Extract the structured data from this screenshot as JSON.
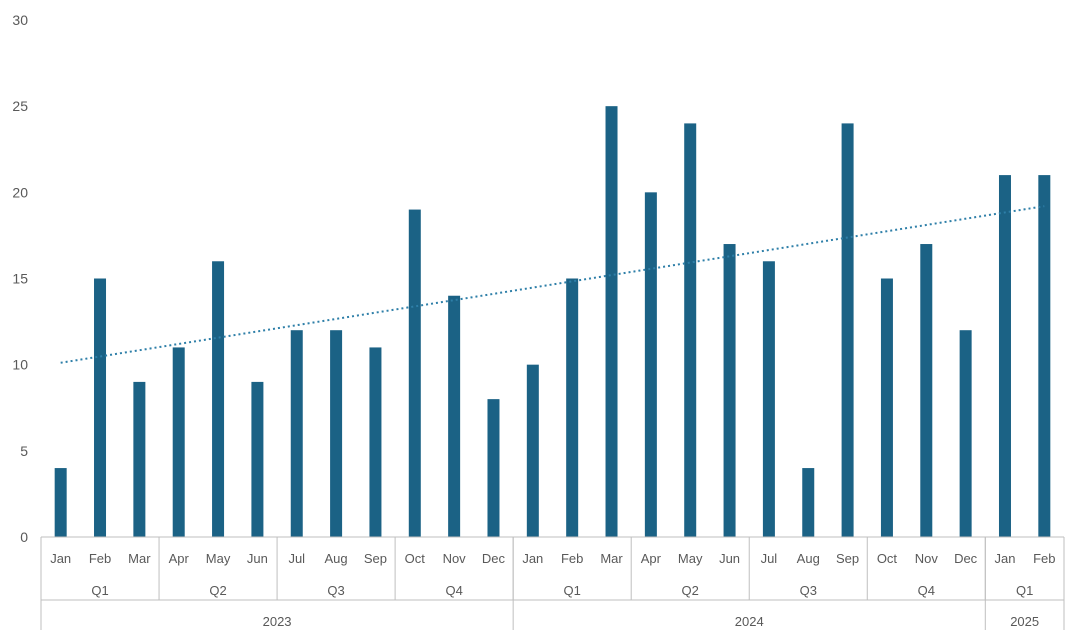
{
  "chart_data": {
    "type": "bar",
    "categories": [
      "Jan",
      "Feb",
      "Mar",
      "Apr",
      "May",
      "Jun",
      "Jul",
      "Aug",
      "Sep",
      "Oct",
      "Nov",
      "Dec",
      "Jan",
      "Feb",
      "Mar",
      "Apr",
      "May",
      "Jun",
      "Jul",
      "Aug",
      "Sep",
      "Oct",
      "Nov",
      "Dec",
      "Jan",
      "Feb"
    ],
    "quarters": [
      {
        "label": "Q1",
        "count": 3
      },
      {
        "label": "Q2",
        "count": 3
      },
      {
        "label": "Q3",
        "count": 3
      },
      {
        "label": "Q4",
        "count": 3
      },
      {
        "label": "Q1",
        "count": 3
      },
      {
        "label": "Q2",
        "count": 3
      },
      {
        "label": "Q3",
        "count": 3
      },
      {
        "label": "Q4",
        "count": 3
      },
      {
        "label": "Q1",
        "count": 2
      }
    ],
    "years": [
      {
        "label": "2023",
        "count": 12
      },
      {
        "label": "2024",
        "count": 12
      },
      {
        "label": "2025",
        "count": 2
      }
    ],
    "values": [
      4,
      15,
      9,
      11,
      16,
      9,
      12,
      12,
      11,
      19,
      14,
      8,
      10,
      15,
      25,
      20,
      24,
      17,
      16,
      4,
      24,
      15,
      17,
      12,
      21,
      21
    ],
    "trendline": {
      "type": "linear",
      "style": "dotted"
    },
    "ylim": [
      0,
      30
    ],
    "yticks": [
      0,
      5,
      10,
      15,
      20,
      25,
      30
    ],
    "grid": false,
    "colors": {
      "bar": "#1b6285",
      "trend": "#2e7fa8",
      "axis": "#bfbfbf",
      "text": "#595959"
    }
  }
}
